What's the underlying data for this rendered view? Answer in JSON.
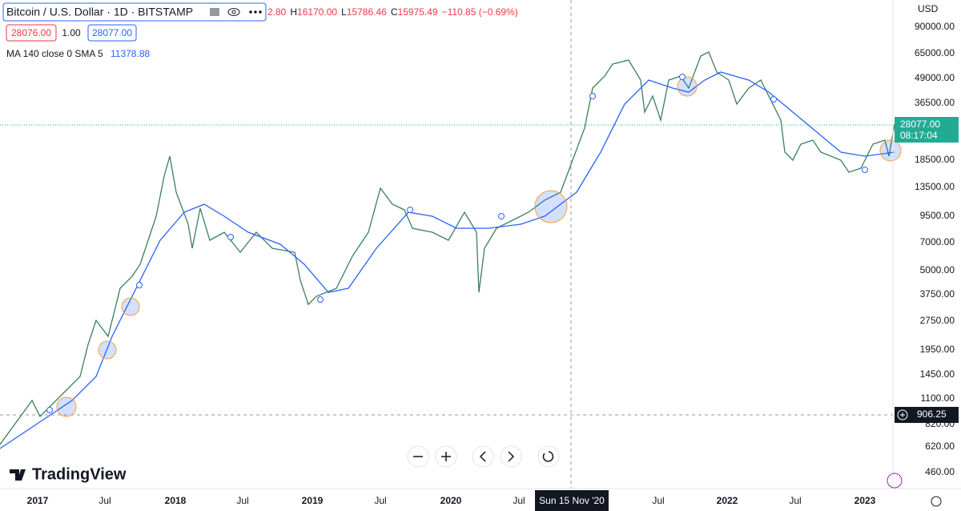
{
  "header": {
    "symbol": "Bitcoin / U.S. Dollar · 1D · BITSTAMP",
    "ohlc": [
      {
        "label": "",
        "value": "2.80"
      },
      {
        "label": "H",
        "value": "16170.00"
      },
      {
        "label": "L",
        "value": "15786.46"
      },
      {
        "label": "C",
        "value": "15975.49"
      }
    ],
    "change": "−110.85 (−0.69%)"
  },
  "quote": {
    "bid": "28076.00",
    "spread": "1.00",
    "ask": "28077.00"
  },
  "indicator": {
    "name": "MA 140 close 0 SMA 5",
    "value": "11378.88"
  },
  "price_axis": {
    "currency": "USD",
    "labels": [
      "90000.00",
      "65000.00",
      "49000.00",
      "36500.00",
      "18500.00",
      "13500.00",
      "9500.00",
      "7000.00",
      "5000.00",
      "3750.00",
      "2750.00",
      "1950.00",
      "1450.00",
      "1100.00",
      "820.00",
      "620.00",
      "460.00"
    ]
  },
  "last_price": {
    "price": "28077.00",
    "countdown": "08:17:04"
  },
  "crosshair": {
    "price": "906.25",
    "time": "Sun 15 Nov '20"
  },
  "time_axis": {
    "labels": [
      "2017",
      "Jul",
      "2018",
      "Jul",
      "2019",
      "Jul",
      "2020",
      "Jul",
      "Jul",
      "2022",
      "Jul",
      "2023"
    ]
  },
  "logo": "TradingView"
}
